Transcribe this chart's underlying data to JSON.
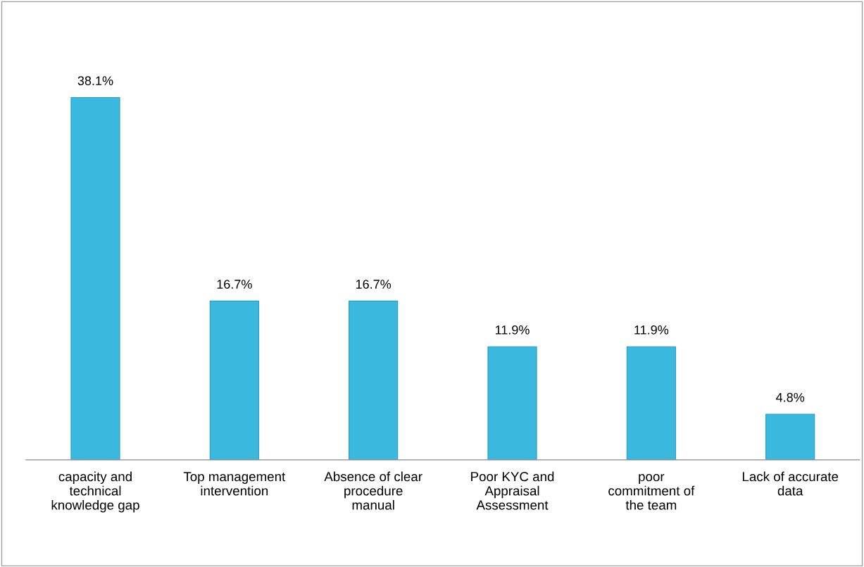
{
  "chart_data": {
    "type": "bar",
    "categories": [
      "capacity and\ntechnical\nknowledge gap",
      "Top management\nintervention",
      "Absence of clear\nprocedure\nmanual",
      "Poor KYC and\nAppraisal\nAssessment",
      "poor\ncommitment of\nthe team",
      "Lack of accurate\ndata"
    ],
    "values": [
      38.1,
      16.7,
      16.7,
      11.9,
      11.9,
      4.8
    ],
    "value_labels": [
      "38.1%",
      "16.7%",
      "16.7%",
      "11.9%",
      "11.9%",
      "4.8%"
    ],
    "color": "#3bb8dd"
  }
}
